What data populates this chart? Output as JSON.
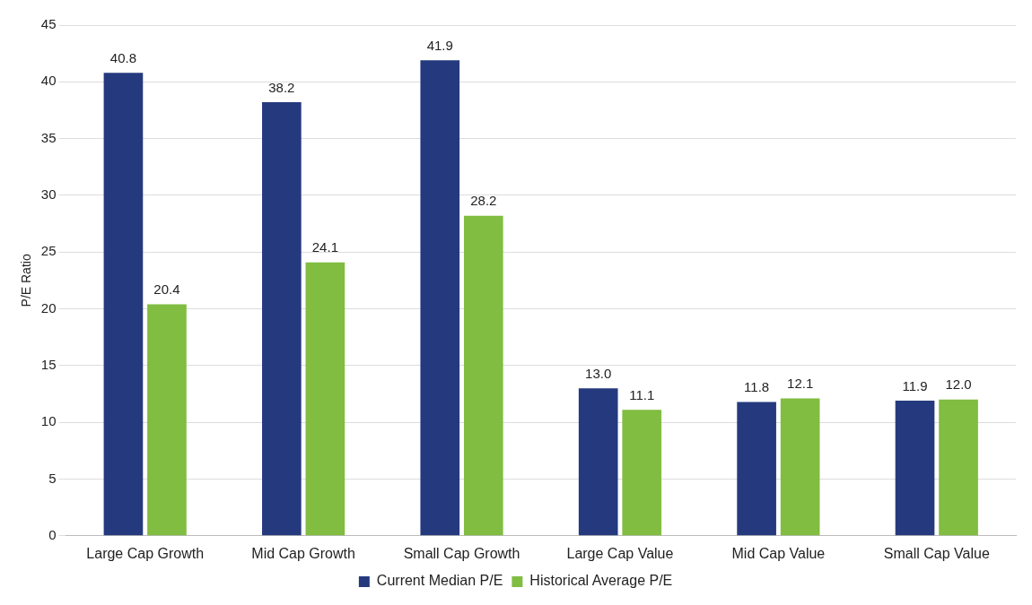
{
  "chart_data": {
    "type": "bar",
    "ylabel": "P/E Ratio",
    "categories": [
      "Large Cap Growth",
      "Mid Cap Growth",
      "Small Cap Growth",
      "Large Cap Value",
      "Mid Cap Value",
      "Small Cap Value"
    ],
    "series": [
      {
        "name": "Current Median P/E",
        "color": "#253a7e",
        "values": [
          40.8,
          38.2,
          41.9,
          13.0,
          11.8,
          11.9
        ],
        "value_labels": [
          "40.8",
          "38.2",
          "41.9",
          "13.0",
          "11.8",
          "11.9"
        ]
      },
      {
        "name": "Historical Average P/E",
        "color": "#80bd41",
        "values": [
          20.4,
          24.1,
          28.2,
          11.1,
          12.1,
          12.0
        ],
        "value_labels": [
          "20.4",
          "24.1",
          "28.2",
          "11.1",
          "12.1",
          "12.0"
        ]
      }
    ],
    "ylim": [
      0,
      45
    ],
    "yticks": [
      0,
      5,
      10,
      15,
      20,
      25,
      30,
      35,
      40,
      45
    ],
    "grid": "y",
    "legend": "bottom"
  }
}
